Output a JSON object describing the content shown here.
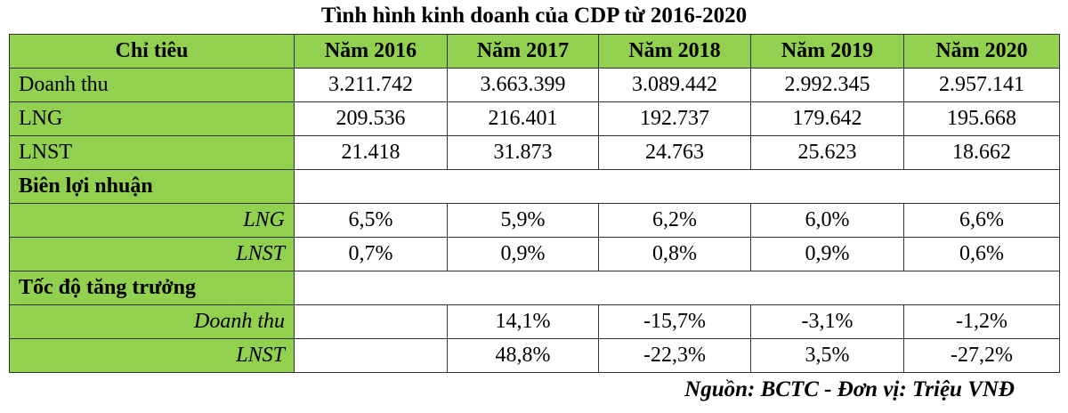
{
  "title": "Tình hình kinh doanh của CDP từ 2016-2020",
  "table": {
    "header": [
      "Chỉ tiêu",
      "Năm 2016",
      "Năm 2017",
      "Năm 2018",
      "Năm 2019",
      "Năm 2020"
    ],
    "rows": [
      {
        "label": "Doanh thu",
        "values": [
          "3.211.742",
          "3.663.399",
          "3.089.442",
          "2.992.345",
          "2.957.141"
        ]
      },
      {
        "label": "LNG",
        "values": [
          "209.536",
          "216.401",
          "192.737",
          "179.642",
          "195.668"
        ]
      },
      {
        "label": "LNST",
        "values": [
          "21.418",
          "31.873",
          "24.763",
          "25.623",
          "18.662"
        ]
      }
    ],
    "sections": [
      {
        "title": "Biên lợi nhuận",
        "rows": [
          {
            "label": "LNG",
            "values": [
              "6,5%",
              "5,9%",
              "6,2%",
              "6,0%",
              "6,6%"
            ]
          },
          {
            "label": "LNST",
            "values": [
              "0,7%",
              "0,9%",
              "0,8%",
              "0,9%",
              "0,6%"
            ]
          }
        ]
      },
      {
        "title": "Tốc độ tăng trưởng",
        "rows": [
          {
            "label": "Doanh thu",
            "values": [
              null,
              "14,1%",
              "-15,7%",
              "-3,1%",
              "-1,2%"
            ]
          },
          {
            "label": "LNST",
            "values": [
              null,
              "48,8%",
              "-22,3%",
              "3,5%",
              "-27,2%"
            ]
          }
        ]
      }
    ]
  },
  "source": "Nguồn: BCTC - Đơn vị: Triệu VNĐ"
}
